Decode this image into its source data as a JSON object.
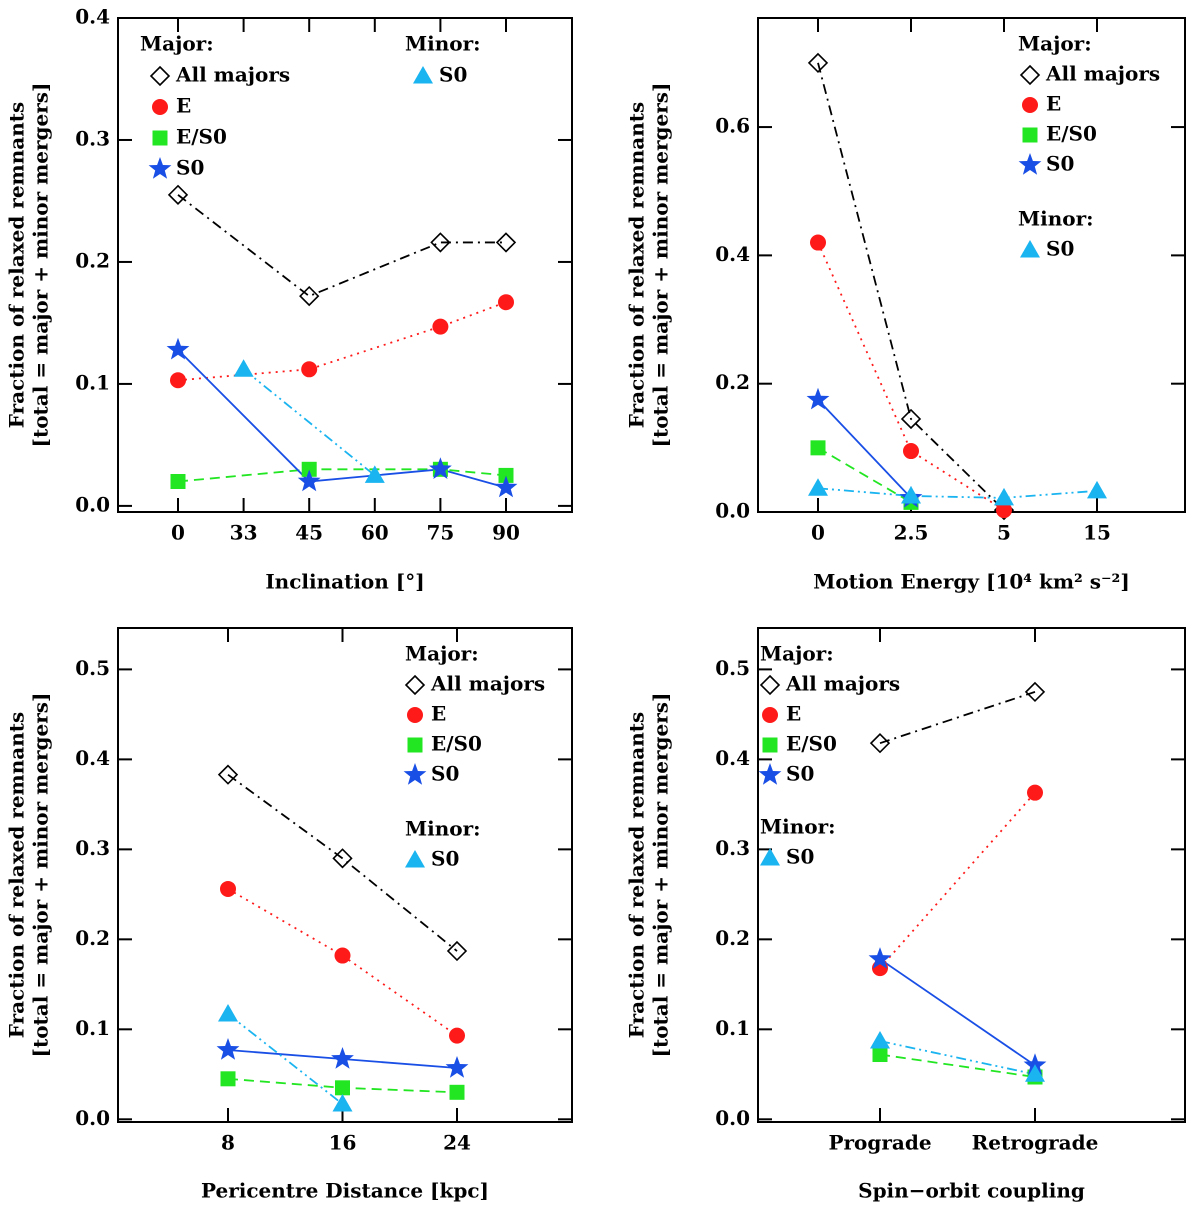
{
  "chart_data": [
    {
      "type": "line",
      "connect_gaps": true,
      "xlabel": "Inclination [°]",
      "ylabel": [
        "Fraction of relaxed remnants",
        "[total = major + minor mergers]"
      ],
      "legend_major": "Major:",
      "legend_minor": "Minor:",
      "categories": [
        "0",
        "33",
        "45",
        "60",
        "75",
        "90"
      ],
      "ylim": [
        -0.005,
        0.4
      ],
      "yticks": [
        {
          "value": 0,
          "label": "0.0"
        },
        0.1,
        0.2,
        0.3,
        0.4
      ],
      "series": [
        {
          "name": "All majors",
          "group": "major",
          "marker": "diamond",
          "linestyle": "dashdot",
          "color": "#000000",
          "values": [
            0.255,
            null,
            0.172,
            null,
            0.216,
            0.216
          ]
        },
        {
          "name": "E",
          "group": "major",
          "marker": "circle",
          "linestyle": "dotted",
          "color": "#ff1a1a",
          "values": [
            0.103,
            null,
            0.112,
            null,
            0.147,
            0.167
          ]
        },
        {
          "name": "E/S0",
          "group": "major",
          "marker": "square",
          "linestyle": "dashed",
          "color": "#22e622",
          "values": [
            0.02,
            null,
            0.03,
            null,
            0.03,
            0.025
          ]
        },
        {
          "name": "S0",
          "group": "major",
          "marker": "star",
          "linestyle": "solid",
          "color": "#1a4fe6",
          "values": [
            0.128,
            null,
            0.02,
            null,
            0.03,
            0.015
          ]
        },
        {
          "name": "S0",
          "group": "minor",
          "marker": "triangle",
          "linestyle": "dashdotdot",
          "color": "#1ab4f0",
          "values": [
            null,
            0.112,
            null,
            0.025,
            null,
            null
          ]
        }
      ]
    },
    {
      "type": "line",
      "connect_gaps": true,
      "xlabel": "Motion Energy [10⁴ km² s⁻²]",
      "ylabel": [
        "Fraction of relaxed remnants",
        "[total = major + minor mergers]"
      ],
      "legend_major": "Major:",
      "legend_minor": "Minor:",
      "categories": [
        "0",
        "2.5",
        "5",
        "15"
      ],
      "ylim": [
        0,
        0.77
      ],
      "yticks": [
        {
          "value": 0,
          "label": "0.0"
        },
        0.2,
        0.4,
        0.6
      ],
      "series": [
        {
          "name": "All majors",
          "group": "major",
          "marker": "diamond",
          "linestyle": "dashdot",
          "color": "#000000",
          "values": [
            0.7,
            0.145,
            0.003,
            null
          ]
        },
        {
          "name": "E",
          "group": "major",
          "marker": "circle",
          "linestyle": "dotted",
          "color": "#ff1a1a",
          "values": [
            0.42,
            0.095,
            0.003,
            null
          ]
        },
        {
          "name": "E/S0",
          "group": "major",
          "marker": "square",
          "linestyle": "dashed",
          "color": "#22e622",
          "values": [
            0.1,
            0.015,
            null,
            null
          ]
        },
        {
          "name": "S0",
          "group": "major",
          "marker": "star",
          "linestyle": "solid",
          "color": "#1a4fe6",
          "values": [
            0.175,
            0.022,
            null,
            null
          ]
        },
        {
          "name": "S0",
          "group": "minor",
          "marker": "triangle",
          "linestyle": "dashdotdot",
          "color": "#1ab4f0",
          "values": [
            0.037,
            0.025,
            0.022,
            0.033
          ]
        }
      ]
    },
    {
      "type": "line",
      "connect_gaps": true,
      "xlabel": "Pericentre Distance [kpc]",
      "ylabel": [
        "Fraction of relaxed remnants",
        "[total = major + minor mergers]"
      ],
      "legend_major": "Major:",
      "legend_minor": "Minor:",
      "categories": [
        "8",
        "16",
        "24"
      ],
      "ylim": [
        -0.003,
        0.546
      ],
      "yticks": [
        {
          "value": 0,
          "label": "0.0"
        },
        0.1,
        0.2,
        0.3,
        0.4,
        0.5
      ],
      "series": [
        {
          "name": "All majors",
          "group": "major",
          "marker": "diamond",
          "linestyle": "dashdot",
          "color": "#000000",
          "values": [
            0.383,
            0.29,
            0.187
          ]
        },
        {
          "name": "E",
          "group": "major",
          "marker": "circle",
          "linestyle": "dotted",
          "color": "#ff1a1a",
          "values": [
            0.256,
            0.182,
            0.093
          ]
        },
        {
          "name": "E/S0",
          "group": "major",
          "marker": "square",
          "linestyle": "dashed",
          "color": "#22e622",
          "values": [
            0.045,
            0.035,
            0.03
          ]
        },
        {
          "name": "S0",
          "group": "major",
          "marker": "star",
          "linestyle": "solid",
          "color": "#1a4fe6",
          "values": [
            0.077,
            0.067,
            0.057
          ]
        },
        {
          "name": "S0",
          "group": "minor",
          "marker": "triangle",
          "linestyle": "dashdotdot",
          "color": "#1ab4f0",
          "values": [
            0.117,
            0.017,
            null
          ]
        }
      ]
    },
    {
      "type": "line",
      "connect_gaps": true,
      "xlabel": "Spin−orbit coupling",
      "ylabel": [
        "Fraction of relaxed remnants",
        "[total = major + minor mergers]"
      ],
      "legend_major": "Major:",
      "legend_minor": "Minor:",
      "categories": [
        "Prograde",
        "Retrograde"
      ],
      "ylim": [
        -0.003,
        0.546
      ],
      "yticks": [
        {
          "value": 0,
          "label": "0.0"
        },
        0.1,
        0.2,
        0.3,
        0.4,
        0.5
      ],
      "series": [
        {
          "name": "All majors",
          "group": "major",
          "marker": "diamond",
          "linestyle": "dashdot",
          "color": "#000000",
          "values": [
            0.418,
            0.475
          ]
        },
        {
          "name": "E",
          "group": "major",
          "marker": "circle",
          "linestyle": "dotted",
          "color": "#ff1a1a",
          "values": [
            0.168,
            0.363
          ]
        },
        {
          "name": "E/S0",
          "group": "major",
          "marker": "square",
          "linestyle": "dashed",
          "color": "#22e622",
          "values": [
            0.072,
            0.047
          ]
        },
        {
          "name": "S0",
          "group": "major",
          "marker": "star",
          "linestyle": "solid",
          "color": "#1a4fe6",
          "values": [
            0.178,
            0.06
          ]
        },
        {
          "name": "S0",
          "group": "minor",
          "marker": "triangle",
          "linestyle": "dashdotdot",
          "color": "#1ab4f0",
          "values": [
            0.087,
            0.05
          ]
        }
      ]
    }
  ]
}
